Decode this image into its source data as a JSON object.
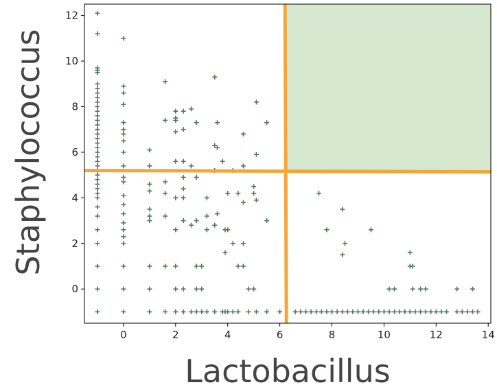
{
  "chart_data": {
    "type": "scatter",
    "xlabel": "Lactobacillus",
    "ylabel": "Staphylococcus",
    "xlim": [
      -1.5,
      14.1
    ],
    "ylim": [
      -1.5,
      12.5
    ],
    "xticks": [
      0,
      2,
      4,
      6,
      8,
      10,
      12,
      14
    ],
    "yticks": [
      0,
      2,
      4,
      6,
      8,
      10,
      12
    ],
    "grid": false,
    "legend": "none",
    "marker": "plus",
    "marker_color": "#4e7a5c",
    "threshold_line_color": "#f5a63a",
    "highlight_color": "#d6e8cf",
    "thresholds": {
      "x": 6.2,
      "y": 5.2
    },
    "highlight_region": {
      "x": [
        6.2,
        14.1
      ],
      "y": [
        5.2,
        12.5
      ]
    },
    "series": [
      {
        "points": [
          [
            -1,
            12.1
          ],
          [
            -1,
            11.2
          ],
          [
            -1,
            9.7
          ],
          [
            -1,
            9.6
          ],
          [
            -1,
            9.5
          ],
          [
            -1,
            9.0
          ],
          [
            -1,
            8.8
          ],
          [
            -1,
            8.6
          ],
          [
            -1,
            8.4
          ],
          [
            -1,
            8.2
          ],
          [
            -1,
            8.0
          ],
          [
            -1,
            7.8
          ],
          [
            -1,
            7.6
          ],
          [
            -1,
            7.4
          ],
          [
            -1,
            7.2
          ],
          [
            -1,
            7.0
          ],
          [
            -1,
            6.8
          ],
          [
            -1,
            6.6
          ],
          [
            -1,
            6.4
          ],
          [
            -1,
            6.2
          ],
          [
            -1,
            6.0
          ],
          [
            -1,
            5.8
          ],
          [
            -1,
            5.6
          ],
          [
            -1,
            5.4
          ],
          [
            -1,
            5.2
          ],
          [
            -1,
            5.0
          ],
          [
            -1,
            4.8
          ],
          [
            -1,
            4.6
          ],
          [
            -1,
            4.4
          ],
          [
            -1,
            4.2
          ],
          [
            -1,
            4.0
          ],
          [
            -1,
            3.6
          ],
          [
            -1,
            3.2
          ],
          [
            -1,
            2.6
          ],
          [
            -1,
            2.0
          ],
          [
            -1,
            1.0
          ],
          [
            -1,
            0
          ],
          [
            -1,
            -1
          ],
          [
            0,
            11.0
          ],
          [
            0,
            8.9
          ],
          [
            0,
            8.6
          ],
          [
            0,
            8.1
          ],
          [
            0,
            7.3
          ],
          [
            0,
            7.0
          ],
          [
            0,
            6.8
          ],
          [
            0,
            6.5
          ],
          [
            0,
            6.0
          ],
          [
            0,
            5.4
          ],
          [
            0,
            4.9
          ],
          [
            0,
            4.7
          ],
          [
            0,
            4.1
          ],
          [
            0,
            3.7
          ],
          [
            0,
            3.3
          ],
          [
            0,
            2.9
          ],
          [
            0,
            2.6
          ],
          [
            0,
            2.3
          ],
          [
            0,
            2.0
          ],
          [
            0,
            1.0
          ],
          [
            0,
            0
          ],
          [
            0,
            -1
          ],
          [
            1,
            6.1
          ],
          [
            1,
            5.4
          ],
          [
            1,
            4.6
          ],
          [
            1,
            4.3
          ],
          [
            1,
            3.5
          ],
          [
            1,
            3.2
          ],
          [
            1,
            3.0
          ],
          [
            1,
            1.0
          ],
          [
            1,
            0
          ],
          [
            1,
            -1
          ],
          [
            1.6,
            9.1
          ],
          [
            1.6,
            7.4
          ],
          [
            1.6,
            4.7
          ],
          [
            1.6,
            4.2
          ],
          [
            1.6,
            3.2
          ],
          [
            1.6,
            1.0
          ],
          [
            1.6,
            -1
          ],
          [
            2.0,
            7.8
          ],
          [
            2.0,
            7.5
          ],
          [
            2.0,
            7.4
          ],
          [
            2.0,
            6.9
          ],
          [
            2.0,
            5.6
          ],
          [
            2.0,
            4.0
          ],
          [
            2.0,
            2.6
          ],
          [
            2.0,
            1.0
          ],
          [
            2.0,
            0
          ],
          [
            2.0,
            -1
          ],
          [
            2.3,
            7.8
          ],
          [
            2.3,
            7.0
          ],
          [
            2.3,
            5.6
          ],
          [
            2.3,
            4.9
          ],
          [
            2.3,
            4.4
          ],
          [
            2.3,
            4.0
          ],
          [
            2.3,
            3.0
          ],
          [
            2.3,
            0
          ],
          [
            2.3,
            -1
          ],
          [
            2.6,
            7.9
          ],
          [
            2.6,
            5.4
          ],
          [
            2.6,
            2.8
          ],
          [
            2.6,
            -1
          ],
          [
            2.8,
            7.3
          ],
          [
            2.8,
            4.9
          ],
          [
            2.8,
            3.0
          ],
          [
            2.8,
            1.0
          ],
          [
            2.8,
            0
          ],
          [
            2.8,
            -1
          ],
          [
            3.0,
            1.0
          ],
          [
            3.0,
            0
          ],
          [
            3.0,
            -1
          ],
          [
            3.2,
            4.0
          ],
          [
            3.2,
            3.2
          ],
          [
            3.2,
            2.6
          ],
          [
            3.2,
            -1
          ],
          [
            3.5,
            9.3
          ],
          [
            3.5,
            6.3
          ],
          [
            3.5,
            5.2
          ],
          [
            3.5,
            2.8
          ],
          [
            3.5,
            -1
          ],
          [
            3.6,
            7.3
          ],
          [
            3.6,
            6.2
          ],
          [
            3.6,
            3.3
          ],
          [
            3.8,
            5.6
          ],
          [
            3.8,
            -1
          ],
          [
            3.9,
            2.6
          ],
          [
            3.9,
            1.6
          ],
          [
            3.9,
            -1
          ],
          [
            4.0,
            4.2
          ],
          [
            4.0,
            2.6
          ],
          [
            4.0,
            -1
          ],
          [
            4.2,
            5.2
          ],
          [
            4.2,
            2.0
          ],
          [
            4.2,
            -1
          ],
          [
            4.4,
            4.2
          ],
          [
            4.4,
            1.0
          ],
          [
            4.4,
            -1
          ],
          [
            4.6,
            6.8
          ],
          [
            4.6,
            5.4
          ],
          [
            4.6,
            3.8
          ],
          [
            4.6,
            2.0
          ],
          [
            4.6,
            1.0
          ],
          [
            4.8,
            0
          ],
          [
            4.8,
            -1
          ],
          [
            5.0,
            4.5
          ],
          [
            5.0,
            4.2
          ],
          [
            5.0,
            0
          ],
          [
            5.1,
            8.2
          ],
          [
            5.1,
            5.9
          ],
          [
            5.1,
            3.9
          ],
          [
            5.1,
            -1
          ],
          [
            5.5,
            7.3
          ],
          [
            5.5,
            3.0
          ],
          [
            5.5,
            -1
          ],
          [
            6.0,
            -1
          ],
          [
            6.6,
            -1
          ],
          [
            6.8,
            -1
          ],
          [
            7.0,
            -1
          ],
          [
            7.2,
            -1
          ],
          [
            7.4,
            -1
          ],
          [
            7.5,
            4.2
          ],
          [
            7.6,
            -1
          ],
          [
            7.8,
            2.6
          ],
          [
            7.8,
            -1
          ],
          [
            8.0,
            -1
          ],
          [
            8.2,
            -1
          ],
          [
            8.4,
            3.5
          ],
          [
            8.4,
            1.5
          ],
          [
            8.4,
            -1
          ],
          [
            8.5,
            2.0
          ],
          [
            8.6,
            -1
          ],
          [
            8.8,
            -1
          ],
          [
            9.0,
            -1
          ],
          [
            9.2,
            -1
          ],
          [
            9.4,
            -1
          ],
          [
            9.5,
            2.6
          ],
          [
            9.6,
            -1
          ],
          [
            9.8,
            -1
          ],
          [
            10.0,
            -1
          ],
          [
            10.2,
            0
          ],
          [
            10.2,
            -1
          ],
          [
            10.4,
            0
          ],
          [
            10.4,
            -1
          ],
          [
            10.6,
            -1
          ],
          [
            10.8,
            -1
          ],
          [
            11.0,
            1.6
          ],
          [
            11.0,
            1.0
          ],
          [
            11.0,
            -1
          ],
          [
            11.1,
            1.0
          ],
          [
            11.1,
            0
          ],
          [
            11.2,
            -1
          ],
          [
            11.4,
            0
          ],
          [
            11.4,
            -1
          ],
          [
            11.6,
            0
          ],
          [
            11.6,
            -1
          ],
          [
            11.8,
            -1
          ],
          [
            12.0,
            -1
          ],
          [
            12.2,
            -1
          ],
          [
            12.4,
            -1
          ],
          [
            12.8,
            0
          ],
          [
            12.8,
            -1
          ],
          [
            13.0,
            -1
          ],
          [
            13.2,
            -1
          ],
          [
            13.4,
            0
          ],
          [
            13.4,
            -1
          ],
          [
            13.6,
            -1
          ]
        ]
      }
    ]
  }
}
